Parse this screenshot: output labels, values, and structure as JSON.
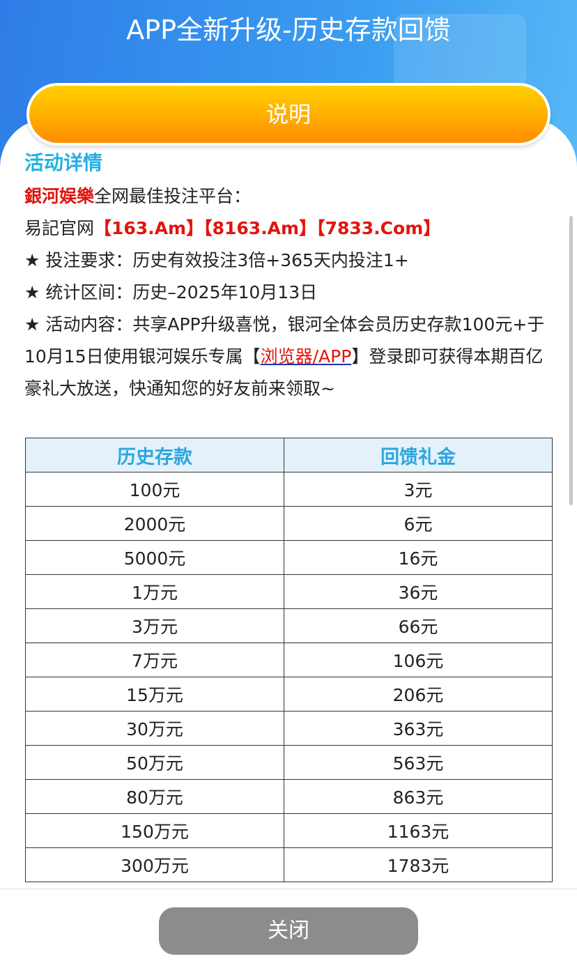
{
  "header": {
    "title": "APP全新升级-历史存款回馈"
  },
  "tab_button": "说明",
  "section_title": "活动详情",
  "details": {
    "brand": "銀河娱樂",
    "brand_suffix": "全网最佳投注平台：",
    "site_label": "易記官网",
    "sites": [
      "【163.Am】",
      "【8163.Am】",
      "【7833.Com】"
    ],
    "requirement": "★ 投注要求：历史有效投注3倍+365天内投注1+",
    "period": "★ 统计区间：历史–2025年10月13日",
    "content_before": "★ 活动内容：共享APP升级喜悦，银河全体会员历史存款100元+于10月15日使用银河娱乐专属【",
    "content_link": "浏览器/APP",
    "content_after": "】登录即可获得本期百亿豪礼大放送，快通知您的好友前来领取~"
  },
  "table": {
    "header": [
      "历史存款",
      "回馈礼金"
    ],
    "rows": [
      [
        "100元",
        "3元"
      ],
      [
        "2000元",
        "6元"
      ],
      [
        "5000元",
        "16元"
      ],
      [
        "1万元",
        "36元"
      ],
      [
        "3万元",
        "66元"
      ],
      [
        "7万元",
        "106元"
      ],
      [
        "15万元",
        "206元"
      ],
      [
        "30万元",
        "363元"
      ],
      [
        "50万元",
        "563元"
      ],
      [
        "80万元",
        "863元"
      ],
      [
        "150万元",
        "1163元"
      ],
      [
        "300万元",
        "1783元"
      ]
    ]
  },
  "close_button": "关闭"
}
